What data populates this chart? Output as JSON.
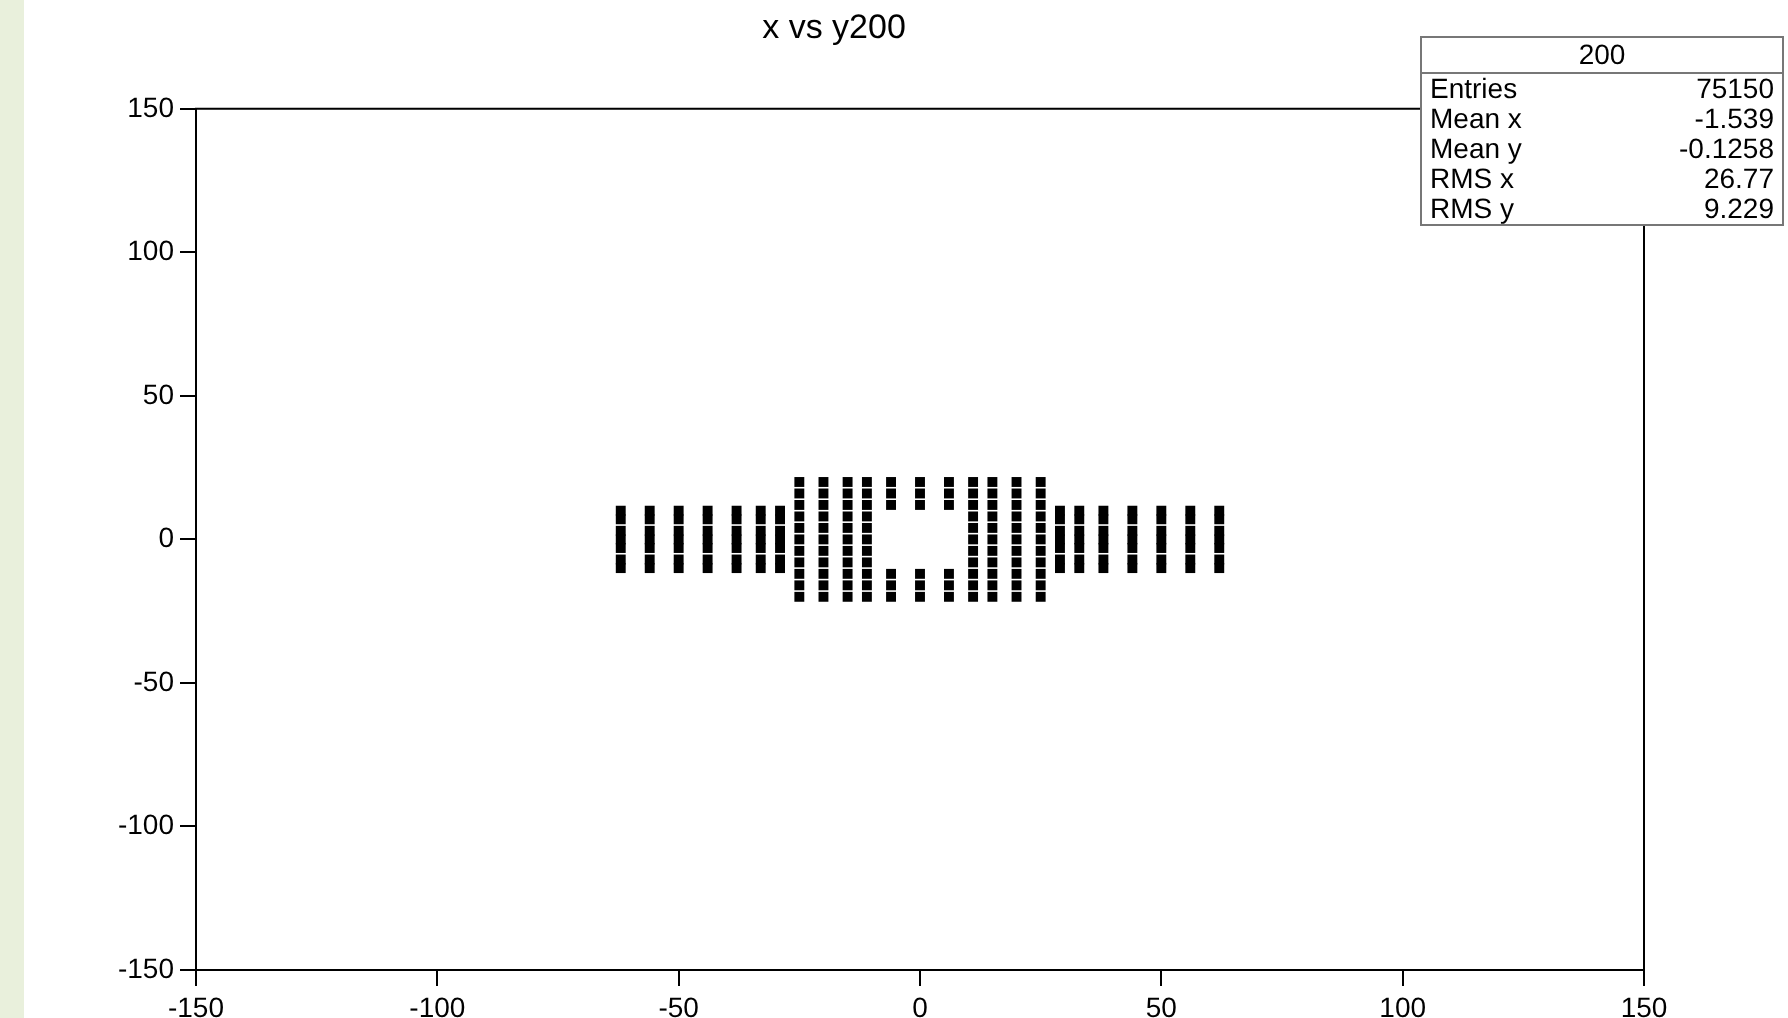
{
  "chart_data": {
    "type": "scatter",
    "title": "x vs y200",
    "xlim": [
      -150,
      150
    ],
    "xticks": [
      -150,
      -100,
      -50,
      0,
      50,
      100,
      150
    ],
    "ylim": [
      -150,
      150
    ],
    "yticks": [
      -150,
      -100,
      -50,
      0,
      50,
      100,
      150
    ],
    "grid": false,
    "legend": false,
    "marker": "square",
    "annotations": [
      "200",
      "Entries 75150",
      "Mean x -1.539",
      "Mean y -0.1258",
      "RMS x 26.77",
      "RMS y 9.229"
    ],
    "series": [
      {
        "color": "#000000",
        "x": [
          -62,
          -62,
          -62,
          -62,
          -62,
          -62,
          -62,
          -56,
          -56,
          -56,
          -56,
          -56,
          -56,
          -56,
          -50,
          -50,
          -50,
          -50,
          -50,
          -50,
          -50,
          -44,
          -44,
          -44,
          -44,
          -44,
          -44,
          -44,
          -38,
          -38,
          -38,
          -38,
          -38,
          -38,
          -38,
          -33,
          -33,
          -33,
          -33,
          -33,
          -33,
          -33,
          -29,
          -29,
          -29,
          -29,
          -29,
          -29,
          -29,
          -25,
          -25,
          -25,
          -25,
          -25,
          -25,
          -25,
          -25,
          -25,
          -25,
          -25,
          -20,
          -20,
          -20,
          -20,
          -20,
          -20,
          -20,
          -20,
          -20,
          -20,
          -20,
          -15,
          -15,
          -15,
          -15,
          -15,
          -15,
          -15,
          -15,
          -15,
          -15,
          -15,
          -11,
          -11,
          -11,
          -11,
          -11,
          -11,
          -11,
          -11,
          -11,
          -11,
          -11,
          -6,
          -6,
          -6,
          -6,
          -6,
          -6,
          0,
          0,
          0,
          0,
          0,
          0,
          6,
          6,
          6,
          6,
          6,
          6,
          11,
          11,
          11,
          11,
          11,
          11,
          11,
          11,
          11,
          11,
          11,
          15,
          15,
          15,
          15,
          15,
          15,
          15,
          15,
          15,
          15,
          15,
          20,
          20,
          20,
          20,
          20,
          20,
          20,
          20,
          20,
          20,
          20,
          25,
          25,
          25,
          25,
          25,
          25,
          25,
          25,
          25,
          25,
          25,
          29,
          29,
          29,
          29,
          29,
          29,
          29,
          33,
          33,
          33,
          33,
          33,
          33,
          33,
          38,
          38,
          38,
          38,
          38,
          38,
          38,
          44,
          44,
          44,
          44,
          44,
          44,
          44,
          50,
          50,
          50,
          50,
          50,
          50,
          50,
          56,
          56,
          56,
          56,
          56,
          56,
          56,
          62,
          62,
          62,
          62,
          62,
          62,
          62
        ],
        "values": [
          -10,
          -7,
          -3,
          0,
          3,
          7,
          10,
          -10,
          -7,
          -3,
          0,
          3,
          7,
          10,
          -10,
          -7,
          -3,
          0,
          3,
          7,
          10,
          -10,
          -7,
          -3,
          0,
          3,
          7,
          10,
          -10,
          -7,
          -3,
          0,
          3,
          7,
          10,
          -10,
          -7,
          -3,
          0,
          3,
          7,
          10,
          -10,
          -7,
          -3,
          0,
          3,
          7,
          10,
          -20,
          -16,
          -12,
          -8,
          -4,
          0,
          4,
          8,
          12,
          16,
          20,
          -20,
          -16,
          -12,
          -8,
          -4,
          0,
          4,
          8,
          12,
          16,
          20,
          -20,
          -16,
          -12,
          -8,
          -4,
          0,
          4,
          8,
          12,
          16,
          20,
          -20,
          -16,
          -12,
          -8,
          -4,
          0,
          4,
          8,
          12,
          16,
          20,
          -20,
          -16,
          -12,
          12,
          16,
          20,
          -20,
          -16,
          -12,
          12,
          16,
          20,
          -20,
          -16,
          -12,
          12,
          16,
          20,
          -20,
          -16,
          -12,
          -8,
          -4,
          0,
          4,
          8,
          12,
          16,
          20,
          -20,
          -16,
          -12,
          -8,
          -4,
          0,
          4,
          8,
          12,
          16,
          20,
          -20,
          -16,
          -12,
          -8,
          -4,
          0,
          4,
          8,
          12,
          16,
          20,
          -20,
          -16,
          -12,
          -8,
          -4,
          0,
          4,
          8,
          12,
          16,
          20,
          -10,
          -7,
          -3,
          0,
          3,
          7,
          10,
          -10,
          -7,
          -3,
          0,
          3,
          7,
          10,
          -10,
          -7,
          -3,
          0,
          3,
          7,
          10,
          -10,
          -7,
          -3,
          0,
          3,
          7,
          10,
          -10,
          -7,
          -3,
          0,
          3,
          7,
          10,
          -10,
          -7,
          -3,
          0,
          3,
          7,
          10,
          -10,
          -7,
          -3,
          0,
          3,
          7,
          10
        ]
      }
    ]
  }
}
